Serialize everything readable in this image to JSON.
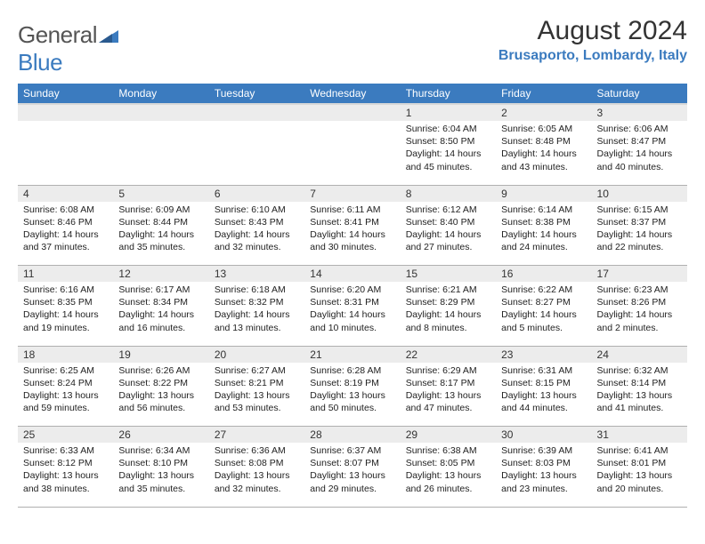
{
  "logo": {
    "text_gray": "General",
    "text_blue": "Blue"
  },
  "title": "August 2024",
  "location": "Brusaporto, Lombardy, Italy",
  "colors": {
    "header_bg": "#3b7bbf",
    "daynum_bg": "#ececec",
    "border": "#b0b0b0",
    "text": "#222222",
    "accent": "#3b7bbf"
  },
  "day_headers": [
    "Sunday",
    "Monday",
    "Tuesday",
    "Wednesday",
    "Thursday",
    "Friday",
    "Saturday"
  ],
  "weeks": [
    [
      null,
      null,
      null,
      null,
      {
        "n": "1",
        "sr": "6:04 AM",
        "ss": "8:50 PM",
        "dl": "14 hours and 45 minutes."
      },
      {
        "n": "2",
        "sr": "6:05 AM",
        "ss": "8:48 PM",
        "dl": "14 hours and 43 minutes."
      },
      {
        "n": "3",
        "sr": "6:06 AM",
        "ss": "8:47 PM",
        "dl": "14 hours and 40 minutes."
      }
    ],
    [
      {
        "n": "4",
        "sr": "6:08 AM",
        "ss": "8:46 PM",
        "dl": "14 hours and 37 minutes."
      },
      {
        "n": "5",
        "sr": "6:09 AM",
        "ss": "8:44 PM",
        "dl": "14 hours and 35 minutes."
      },
      {
        "n": "6",
        "sr": "6:10 AM",
        "ss": "8:43 PM",
        "dl": "14 hours and 32 minutes."
      },
      {
        "n": "7",
        "sr": "6:11 AM",
        "ss": "8:41 PM",
        "dl": "14 hours and 30 minutes."
      },
      {
        "n": "8",
        "sr": "6:12 AM",
        "ss": "8:40 PM",
        "dl": "14 hours and 27 minutes."
      },
      {
        "n": "9",
        "sr": "6:14 AM",
        "ss": "8:38 PM",
        "dl": "14 hours and 24 minutes."
      },
      {
        "n": "10",
        "sr": "6:15 AM",
        "ss": "8:37 PM",
        "dl": "14 hours and 22 minutes."
      }
    ],
    [
      {
        "n": "11",
        "sr": "6:16 AM",
        "ss": "8:35 PM",
        "dl": "14 hours and 19 minutes."
      },
      {
        "n": "12",
        "sr": "6:17 AM",
        "ss": "8:34 PM",
        "dl": "14 hours and 16 minutes."
      },
      {
        "n": "13",
        "sr": "6:18 AM",
        "ss": "8:32 PM",
        "dl": "14 hours and 13 minutes."
      },
      {
        "n": "14",
        "sr": "6:20 AM",
        "ss": "8:31 PM",
        "dl": "14 hours and 10 minutes."
      },
      {
        "n": "15",
        "sr": "6:21 AM",
        "ss": "8:29 PM",
        "dl": "14 hours and 8 minutes."
      },
      {
        "n": "16",
        "sr": "6:22 AM",
        "ss": "8:27 PM",
        "dl": "14 hours and 5 minutes."
      },
      {
        "n": "17",
        "sr": "6:23 AM",
        "ss": "8:26 PM",
        "dl": "14 hours and 2 minutes."
      }
    ],
    [
      {
        "n": "18",
        "sr": "6:25 AM",
        "ss": "8:24 PM",
        "dl": "13 hours and 59 minutes."
      },
      {
        "n": "19",
        "sr": "6:26 AM",
        "ss": "8:22 PM",
        "dl": "13 hours and 56 minutes."
      },
      {
        "n": "20",
        "sr": "6:27 AM",
        "ss": "8:21 PM",
        "dl": "13 hours and 53 minutes."
      },
      {
        "n": "21",
        "sr": "6:28 AM",
        "ss": "8:19 PM",
        "dl": "13 hours and 50 minutes."
      },
      {
        "n": "22",
        "sr": "6:29 AM",
        "ss": "8:17 PM",
        "dl": "13 hours and 47 minutes."
      },
      {
        "n": "23",
        "sr": "6:31 AM",
        "ss": "8:15 PM",
        "dl": "13 hours and 44 minutes."
      },
      {
        "n": "24",
        "sr": "6:32 AM",
        "ss": "8:14 PM",
        "dl": "13 hours and 41 minutes."
      }
    ],
    [
      {
        "n": "25",
        "sr": "6:33 AM",
        "ss": "8:12 PM",
        "dl": "13 hours and 38 minutes."
      },
      {
        "n": "26",
        "sr": "6:34 AM",
        "ss": "8:10 PM",
        "dl": "13 hours and 35 minutes."
      },
      {
        "n": "27",
        "sr": "6:36 AM",
        "ss": "8:08 PM",
        "dl": "13 hours and 32 minutes."
      },
      {
        "n": "28",
        "sr": "6:37 AM",
        "ss": "8:07 PM",
        "dl": "13 hours and 29 minutes."
      },
      {
        "n": "29",
        "sr": "6:38 AM",
        "ss": "8:05 PM",
        "dl": "13 hours and 26 minutes."
      },
      {
        "n": "30",
        "sr": "6:39 AM",
        "ss": "8:03 PM",
        "dl": "13 hours and 23 minutes."
      },
      {
        "n": "31",
        "sr": "6:41 AM",
        "ss": "8:01 PM",
        "dl": "13 hours and 20 minutes."
      }
    ]
  ],
  "labels": {
    "sunrise": "Sunrise:",
    "sunset": "Sunset:",
    "daylight": "Daylight:"
  }
}
